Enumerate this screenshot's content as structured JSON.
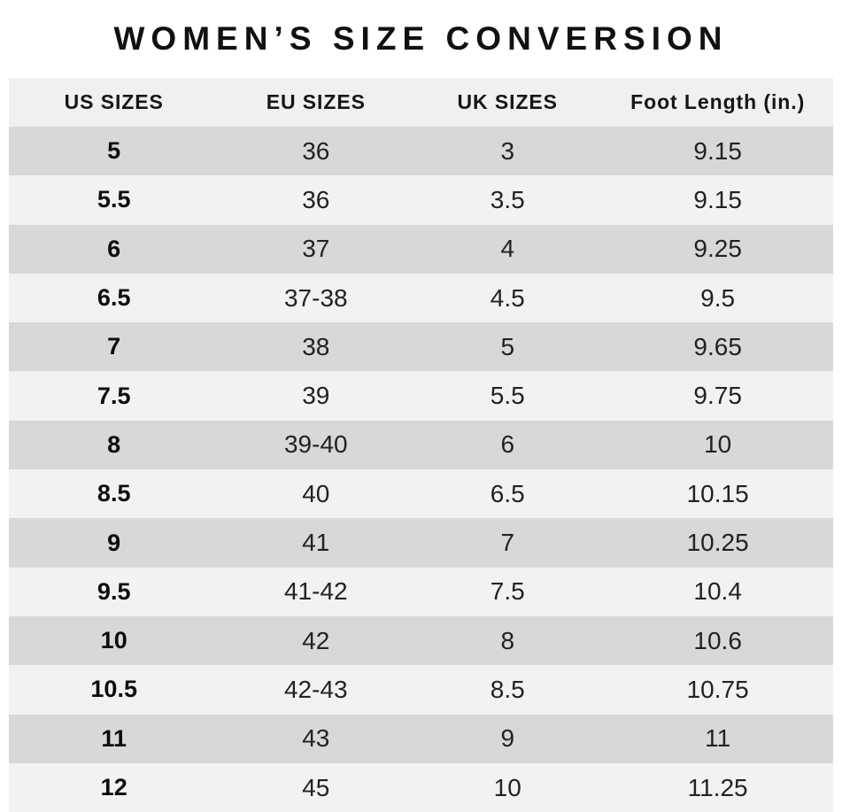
{
  "page": {
    "title": "WOMEN’S SIZE CONVERSION"
  },
  "chart_data": {
    "type": "table",
    "title": "WOMEN’S SIZE CONVERSION",
    "columns": [
      "US SIZES",
      "EU SIZES",
      "UK SIZES",
      "Foot Length (in.)"
    ],
    "rows": [
      [
        "5",
        "36",
        "3",
        "9.15"
      ],
      [
        "5.5",
        "36",
        "3.5",
        "9.15"
      ],
      [
        "6",
        "37",
        "4",
        "9.25"
      ],
      [
        "6.5",
        "37-38",
        "4.5",
        "9.5"
      ],
      [
        "7",
        "38",
        "5",
        "9.65"
      ],
      [
        "7.5",
        "39",
        "5.5",
        "9.75"
      ],
      [
        "8",
        "39-40",
        "6",
        "10"
      ],
      [
        "8.5",
        "40",
        "6.5",
        "10.15"
      ],
      [
        "9",
        "41",
        "7",
        "10.25"
      ],
      [
        "9.5",
        "41-42",
        "7.5",
        "10.4"
      ],
      [
        "10",
        "42",
        "8",
        "10.6"
      ],
      [
        "10.5",
        "42-43",
        "8.5",
        "10.75"
      ],
      [
        "11",
        "43",
        "9",
        "11"
      ],
      [
        "12",
        "45",
        "10",
        "11.25"
      ]
    ],
    "layout": {
      "striped": true,
      "first_row_band": "dark",
      "first_column_bold": true,
      "legend": "none",
      "grid": "off"
    }
  },
  "colors": {
    "row_dark": "#d8d8d8",
    "row_light": "#f2f2f2",
    "header_bg": "#f0f0f0",
    "title_text": "#111111",
    "cell_text": "#222222",
    "background": "#ffffff"
  }
}
